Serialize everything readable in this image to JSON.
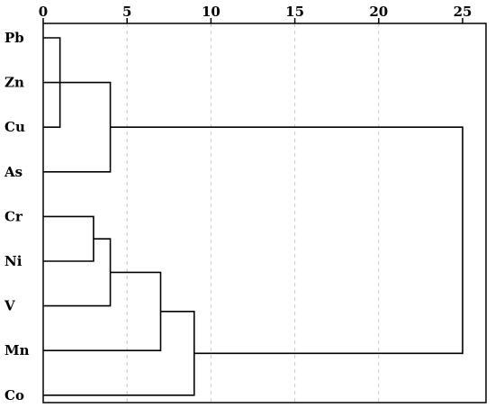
{
  "chart_data": {
    "type": "dendrogram",
    "title": "",
    "xlabel": "",
    "ylabel": "",
    "x_ticks": [
      "0",
      "5",
      "10",
      "15",
      "20",
      "25"
    ],
    "xlim": [
      0,
      25
    ],
    "grid": "vertical dashed",
    "leaves": [
      "Pb",
      "Zn",
      "Cu",
      "As",
      "Cr",
      "Ni",
      "V",
      "Mn",
      "Co"
    ],
    "merges": [
      {
        "id": "n1",
        "children": [
          "Pb",
          "Cu"
        ],
        "height": 1
      },
      {
        "id": "n2",
        "children": [
          "Zn",
          "n1"
        ],
        "height": 1
      },
      {
        "id": "n3",
        "children": [
          "Cr",
          "Ni"
        ],
        "height": 3
      },
      {
        "id": "n4",
        "children": [
          "n2",
          "As"
        ],
        "height": 4
      },
      {
        "id": "n5",
        "children": [
          "n3",
          "V"
        ],
        "height": 4
      },
      {
        "id": "n6",
        "children": [
          "n5",
          "Mn"
        ],
        "height": 7
      },
      {
        "id": "n7",
        "children": [
          "n6",
          "Co"
        ],
        "height": 9
      },
      {
        "id": "n8",
        "children": [
          "n4",
          "n7"
        ],
        "height": 25
      }
    ]
  }
}
